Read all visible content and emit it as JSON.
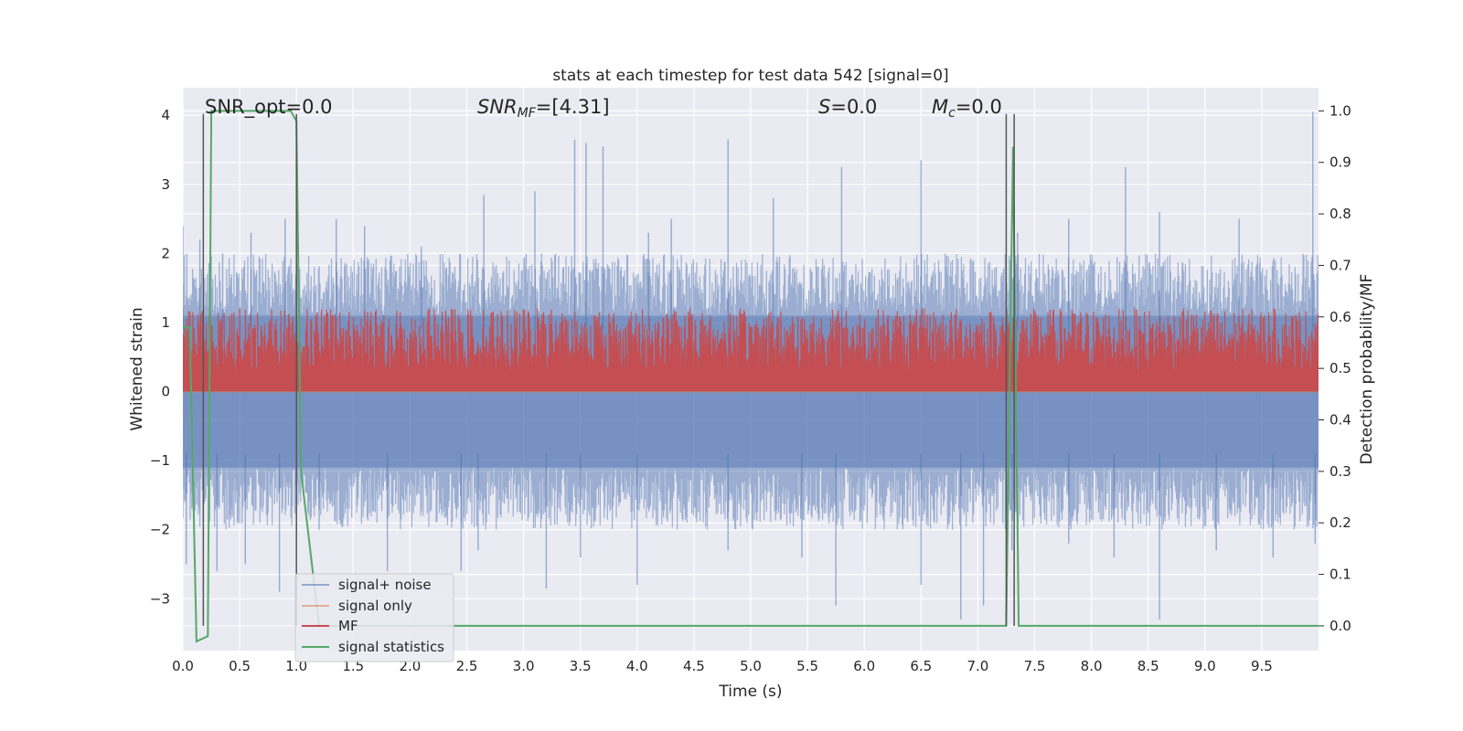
{
  "chart_data": {
    "type": "line",
    "title": "stats at each timestep for test data 542 [signal=0]",
    "xlabel": "Time (s)",
    "ylabel": "Whitened strain",
    "y2label": "Detection probability/MF",
    "xlim": [
      0,
      10
    ],
    "ylim": [
      -3.75,
      4.4
    ],
    "y2lim": [
      -0.048,
      1.045
    ],
    "xticks": [
      "0.0",
      "0.5",
      "1.0",
      "1.5",
      "2.0",
      "2.5",
      "3.0",
      "3.5",
      "4.0",
      "4.5",
      "5.0",
      "5.5",
      "6.0",
      "6.5",
      "7.0",
      "7.5",
      "8.0",
      "8.5",
      "9.0",
      "9.5"
    ],
    "yticks": [
      "−3",
      "−2",
      "−1",
      "0",
      "1",
      "2",
      "3",
      "4"
    ],
    "y2ticks": [
      "0.0",
      "0.1",
      "0.2",
      "0.3",
      "0.4",
      "0.5",
      "0.6",
      "0.7",
      "0.8",
      "0.9",
      "1.0"
    ],
    "grid": true,
    "legend_position": "lower-left",
    "annotations": {
      "snr_opt": "SNR_opt=0.0",
      "snr_mf_sym": "SNR",
      "snr_mf_sub": "MF",
      "snr_mf_val": "=[4.31]",
      "s_sym": "S",
      "s_val": "=0.0",
      "mc_sym": "M",
      "mc_sub": "c",
      "mc_val": "=0.0"
    },
    "vertical_markers_s": [
      0.18,
      1.0,
      7.25,
      7.32
    ],
    "series": [
      {
        "name": "signal+ noise",
        "color": "#4c72b0",
        "axis": "left",
        "description_band": [
          -1.1,
          1.1
        ],
        "peaks": [
          [
            0.0,
            2.4
          ],
          [
            0.15,
            2.2
          ],
          [
            0.35,
            2.0
          ],
          [
            0.6,
            2.3
          ],
          [
            0.9,
            2.5
          ],
          [
            1.35,
            2.5
          ],
          [
            1.6,
            2.4
          ],
          [
            2.1,
            2.1
          ],
          [
            2.65,
            2.85
          ],
          [
            3.1,
            2.9
          ],
          [
            3.45,
            3.65
          ],
          [
            3.55,
            3.6
          ],
          [
            3.7,
            3.55
          ],
          [
            4.1,
            2.3
          ],
          [
            4.3,
            2.5
          ],
          [
            4.8,
            3.65
          ],
          [
            5.2,
            2.8
          ],
          [
            5.8,
            3.25
          ],
          [
            6.5,
            3.35
          ],
          [
            7.35,
            2.3
          ],
          [
            7.8,
            2.5
          ],
          [
            8.3,
            3.25
          ],
          [
            8.6,
            2.6
          ],
          [
            9.3,
            2.5
          ],
          [
            9.95,
            4.05
          ]
        ],
        "troughs": [
          [
            0.03,
            -2.5
          ],
          [
            0.3,
            -2.6
          ],
          [
            0.55,
            -2.5
          ],
          [
            0.85,
            -2.9
          ],
          [
            1.2,
            -2.0
          ],
          [
            1.8,
            -2.6
          ],
          [
            2.45,
            -2.6
          ],
          [
            2.6,
            -2.3
          ],
          [
            3.2,
            -2.85
          ],
          [
            3.5,
            -2.4
          ],
          [
            4.0,
            -2.8
          ],
          [
            4.8,
            -2.3
          ],
          [
            5.45,
            -2.4
          ],
          [
            5.75,
            -3.1
          ],
          [
            6.5,
            -2.8
          ],
          [
            6.85,
            -3.3
          ],
          [
            7.05,
            -3.1
          ],
          [
            7.3,
            -2.3
          ],
          [
            7.8,
            -2.2
          ],
          [
            8.2,
            -2.4
          ],
          [
            8.6,
            -3.3
          ],
          [
            9.1,
            -2.3
          ],
          [
            9.6,
            -2.4
          ],
          [
            9.97,
            -2.2
          ]
        ]
      },
      {
        "name": "signal only",
        "color": "#dd8452",
        "axis": "left",
        "values_const": 0.0
      },
      {
        "name": "MF",
        "color": "#c44e52",
        "axis": "right",
        "baseline": 0.455,
        "typical_peak": 0.59,
        "max_peak": 0.64
      },
      {
        "name": "signal statistics",
        "color": "#55a868",
        "axis": "right",
        "x": [
          0.0,
          0.06,
          0.12,
          0.22,
          0.25,
          0.95,
          1.0,
          1.04,
          1.2,
          7.25,
          7.31,
          7.36,
          7.4,
          10.0
        ],
        "y": [
          0.58,
          0.58,
          -0.03,
          -0.02,
          1.0,
          1.0,
          0.98,
          0.3,
          0.0,
          0.0,
          0.93,
          0.0,
          0.0,
          0.0
        ]
      }
    ]
  }
}
